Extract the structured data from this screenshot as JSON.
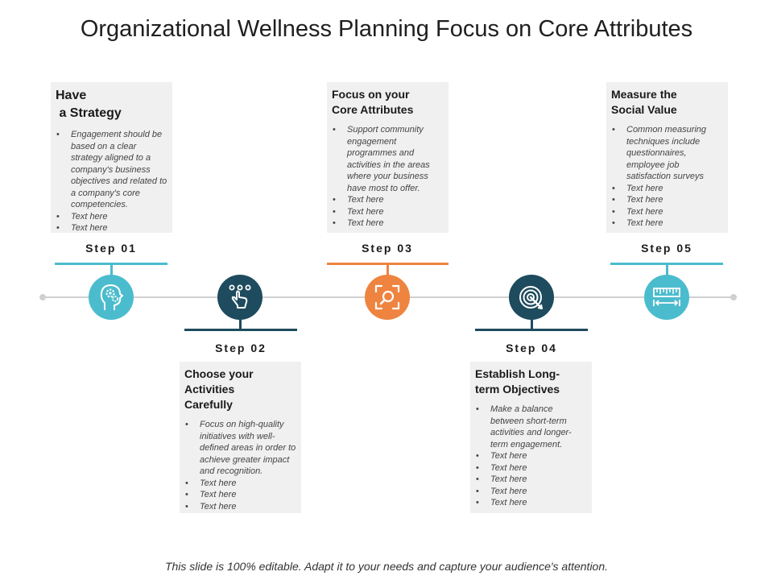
{
  "title": "Organizational Wellness Planning Focus on Core Attributes",
  "footer": "This slide is 100% editable. Adapt it to your needs and capture your audience's attention.",
  "colors": {
    "teal": "#4bbccd",
    "navy": "#1e4b5e",
    "orange": "#ee8440",
    "axis": "#d0d0d0",
    "box": "#f0f0f0"
  },
  "steps": [
    {
      "label": "Step 01",
      "heading_lines": [
        "Have",
        " a Strategy"
      ],
      "bullets": [
        "Engagement should be based on a clear strategy aligned to a company's business objectives and related to a company's core competencies.",
        "Text here",
        "Text here"
      ],
      "icon": "head-gears-icon",
      "color": "teal"
    },
    {
      "label": "Step 02",
      "heading_lines": [
        "Choose your",
        "Activities",
        "Carefully"
      ],
      "bullets": [
        "Focus on high-quality initiatives with well-defined areas in order to achieve greater impact and recognition.",
        "Text here",
        "Text here",
        "Text here"
      ],
      "icon": "hand-pointer-icon",
      "color": "navy"
    },
    {
      "label": "Step 03",
      "heading_lines": [
        "Focus on your",
        "Core Attributes"
      ],
      "bullets": [
        "Support community engagement programmes and activities in the areas where your business have most to offer.",
        "Text here",
        "Text here",
        "Text here"
      ],
      "icon": "focus-search-icon",
      "color": "orange"
    },
    {
      "label": "Step 04",
      "heading_lines": [
        "Establish Long-",
        "term Objectives"
      ],
      "bullets": [
        "Make a balance between short-term activities and longer-term engagement.",
        "Text here",
        "Text here",
        "Text here",
        "Text here",
        "Text here"
      ],
      "icon": "target-arrow-icon",
      "color": "navy"
    },
    {
      "label": "Step 05",
      "heading_lines": [
        "Measure the",
        "Social Value"
      ],
      "bullets": [
        "Common measuring techniques include questionnaires, employee job satisfaction surveys",
        "Text here",
        "Text here",
        "Text here",
        "Text here"
      ],
      "icon": "ruler-measure-icon",
      "color": "teal"
    }
  ]
}
